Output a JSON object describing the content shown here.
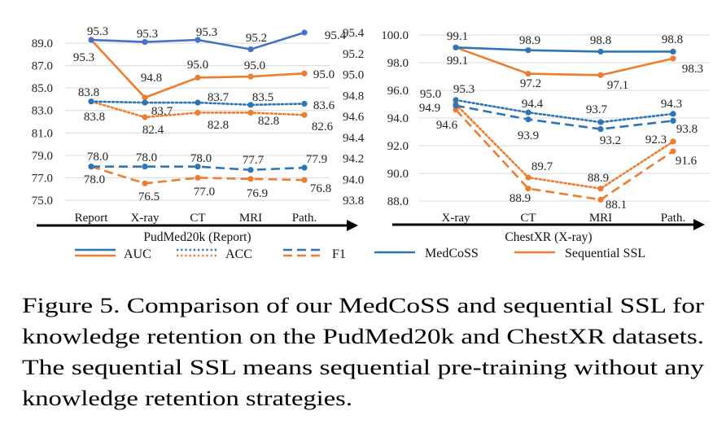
{
  "colors": {
    "medcoss": "#2E75B6",
    "medcoss_auc": "#4472C4",
    "sequential": "#ED7D31"
  },
  "chart_data": [
    {
      "type": "line",
      "title": "PudMed20k (Report)",
      "xlabel": "PudMed20k (Report)",
      "categories": [
        "Report",
        "X-ray",
        "CT",
        "MRI",
        "Path."
      ],
      "y_left": {
        "ylim": [
          75.0,
          89.0
        ],
        "ticks": [
          "89.0",
          "87.0",
          "85.0",
          "83.0",
          "81.0",
          "79.0",
          "77.0",
          "75.0"
        ],
        "values": [
          89,
          87,
          85,
          83,
          81,
          79,
          77,
          75
        ]
      },
      "y_right": {
        "ylim": [
          93.8,
          95.4
        ],
        "ticks": [
          "95.4",
          "95.2",
          "95.0",
          "94.8",
          "94.6",
          "94.4",
          "94.2",
          "94.0",
          "93.8"
        ],
        "values": [
          95.4,
          95.2,
          95.0,
          94.8,
          94.6,
          94.4,
          94.2,
          94.0,
          93.8
        ]
      },
      "grid": true,
      "series": [
        {
          "name": "MedCoSS AUC",
          "metric": "AUC",
          "method": "MedCoSS",
          "axis": "right",
          "style": "solid",
          "values": [
            95.33,
            95.31,
            95.33,
            95.24,
            95.4
          ],
          "labels": [
            "95.3",
            "95.3",
            "95.3",
            "95.2",
            "95.4"
          ]
        },
        {
          "name": "Sequential SSL AUC",
          "metric": "AUC",
          "method": "Sequential SSL",
          "axis": "right",
          "style": "solid",
          "values": [
            95.33,
            94.78,
            94.97,
            94.98,
            95.01
          ],
          "labels": [
            "95.3",
            "94.8",
            "95.0",
            "95.0",
            "95.0"
          ]
        },
        {
          "name": "MedCoSS ACC",
          "metric": "ACC",
          "method": "MedCoSS",
          "axis": "left",
          "style": "dotted",
          "values": [
            83.8,
            83.7,
            83.7,
            83.5,
            83.6
          ],
          "labels": [
            "83.8",
            "83.7",
            "83.7",
            "83.5",
            "83.6"
          ]
        },
        {
          "name": "Sequential SSL ACC",
          "metric": "ACC",
          "method": "Sequential SSL",
          "axis": "left",
          "style": "dotted",
          "values": [
            83.8,
            82.4,
            82.8,
            82.8,
            82.6
          ],
          "labels": [
            "83.8",
            "82.4",
            "82.8",
            "82.8",
            "82.6"
          ]
        },
        {
          "name": "MedCoSS F1",
          "metric": "F1",
          "method": "MedCoSS",
          "axis": "left",
          "style": "dashed",
          "values": [
            78.0,
            78.0,
            78.0,
            77.7,
            77.9
          ],
          "labels": [
            "78.0",
            "78.0",
            "78.0",
            "77.7",
            "77.9"
          ]
        },
        {
          "name": "Sequential SSL F1",
          "metric": "F1",
          "method": "Sequential SSL",
          "axis": "left",
          "style": "dashed",
          "values": [
            78.0,
            76.5,
            77.0,
            76.9,
            76.8
          ],
          "labels": [
            "78.0",
            "76.5",
            "77.0",
            "76.9",
            "76.8"
          ]
        }
      ],
      "legend": {
        "placement": "bottom",
        "entries": [
          "AUC",
          "ACC",
          "F1"
        ]
      }
    },
    {
      "type": "line",
      "title": "ChestXR (X-ray)",
      "xlabel": "ChestXR (X-ray)",
      "categories": [
        "X-ray",
        "CT",
        "MRI",
        "Path."
      ],
      "y_left": {
        "ylim": [
          88.0,
          100.0
        ],
        "ticks": [
          "100.0",
          "98.0",
          "96.0",
          "94.0",
          "92.0",
          "90.0",
          "88.0"
        ],
        "values": [
          100,
          98,
          96,
          94,
          92,
          90,
          88
        ]
      },
      "grid": true,
      "series": [
        {
          "name": "MedCoSS AUC",
          "metric": "AUC",
          "method": "MedCoSS",
          "style": "solid",
          "values": [
            99.1,
            98.9,
            98.8,
            98.8
          ],
          "labels": [
            "99.1",
            "98.9",
            "98.8",
            "98.8"
          ]
        },
        {
          "name": "Sequential SSL AUC",
          "metric": "AUC",
          "method": "Sequential SSL",
          "style": "solid",
          "values": [
            99.1,
            97.2,
            97.1,
            98.3
          ],
          "labels": [
            "99.1",
            "97.2",
            "97.1",
            "98.3"
          ]
        },
        {
          "name": "MedCoSS ACC",
          "metric": "ACC",
          "method": "MedCoSS",
          "style": "dotted",
          "values": [
            95.3,
            94.4,
            93.7,
            94.3
          ],
          "labels": [
            "95.3",
            "94.4",
            "93.7",
            "94.3"
          ]
        },
        {
          "name": "Sequential SSL ACC",
          "metric": "ACC",
          "method": "Sequential SSL",
          "style": "dotted",
          "values": [
            95.0,
            89.7,
            88.9,
            92.3
          ],
          "labels": [
            "95.0",
            "89.7",
            "88.9",
            "92.3"
          ]
        },
        {
          "name": "MedCoSS F1",
          "metric": "F1",
          "method": "MedCoSS",
          "style": "dashed",
          "values": [
            94.9,
            93.9,
            93.2,
            93.8
          ],
          "labels": [
            "94.9",
            "93.9",
            "93.2",
            "93.8"
          ]
        },
        {
          "name": "Sequential SSL F1",
          "metric": "F1",
          "method": "Sequential SSL",
          "style": "dashed",
          "values": [
            94.6,
            88.9,
            88.1,
            91.6
          ],
          "labels": [
            "94.6",
            "88.9",
            "88.1",
            "91.6"
          ]
        }
      ],
      "legend": {
        "placement": "bottom",
        "entries": [
          "MedCoSS",
          "Sequential SSL"
        ]
      }
    }
  ],
  "caption": [
    "Figure 5.  Comparison of our MedCoSS and sequential SSL for",
    "knowledge retention on the PudMed20k and ChestXR datasets.",
    "The sequential SSL means sequential pre-training without any",
    "knowledge retention strategies."
  ]
}
